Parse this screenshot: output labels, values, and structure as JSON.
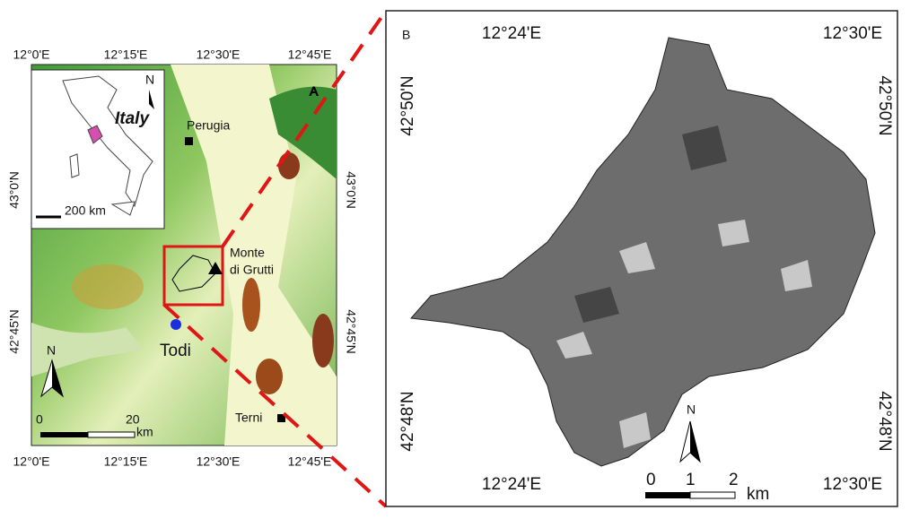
{
  "panel_a": {
    "label": "A",
    "top_labels": [
      "12°0'E",
      "12°15'E",
      "12°30'E",
      "12°45'E"
    ],
    "bottom_labels": [
      "12°0'E",
      "12°15'E",
      "12°30'E",
      "12°45'E"
    ],
    "left_labels": [
      "43°0'N",
      "42°45'N"
    ],
    "right_labels": [
      "43°0'N",
      "42°45'N"
    ],
    "inset": {
      "title": "Italy",
      "scale": "200 km",
      "north": "N"
    },
    "places": {
      "perugia": "Perugia",
      "monte": "Monte",
      "grutti": "di Grutti",
      "todi": "Todi",
      "terni": "Terni"
    },
    "north": "N",
    "scale": {
      "start": "0",
      "end": "20",
      "unit": "km"
    }
  },
  "panel_b": {
    "label": "B",
    "top_labels": [
      "12°24'E",
      "12°30'E"
    ],
    "bottom_labels": [
      "12°24'E",
      "12°30'E"
    ],
    "left_labels": [
      "42°50'N",
      "42°48'N"
    ],
    "right_labels": [
      "42°50'N",
      "42°48'N"
    ],
    "north": "N",
    "scale": {
      "start": "0",
      "mid": "1",
      "end": "2",
      "unit": "km"
    }
  }
}
